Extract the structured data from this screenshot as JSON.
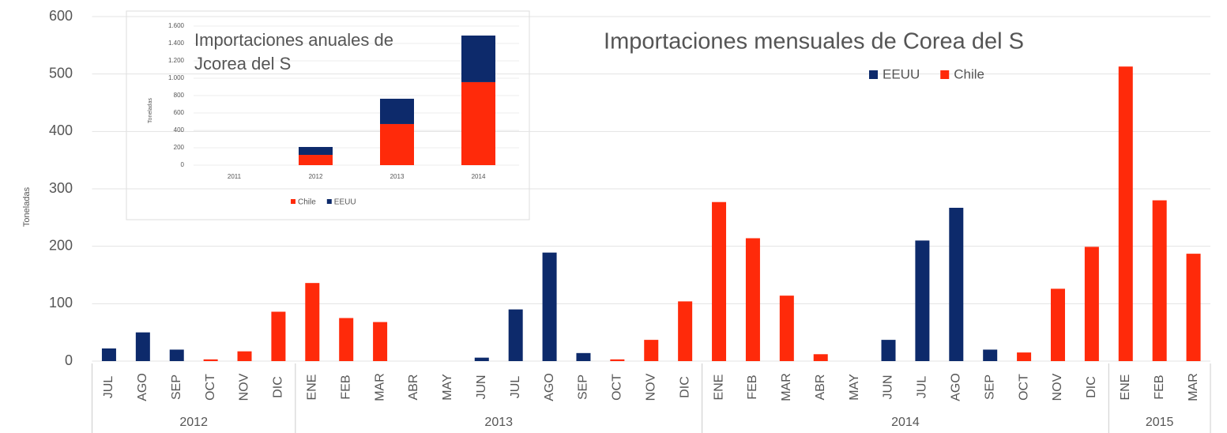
{
  "chart_data": [
    {
      "type": "bar",
      "title": "Importaciones mensuales de Corea del S",
      "y_label": "Toneladas",
      "categories": [
        "JUL",
        "AGO",
        "SEP",
        "OCT",
        "NOV",
        "DIC",
        "ENE",
        "FEB",
        "MAR",
        "ABR",
        "MAY",
        "JUN",
        "JUL",
        "AGO",
        "SEP",
        "OCT",
        "NOV",
        "DIC",
        "ENE",
        "FEB",
        "MAR",
        "ABR",
        "MAY",
        "JUN",
        "JUL",
        "AGO",
        "SEP",
        "OCT",
        "NOV",
        "DIC",
        "ENE",
        "FEB",
        "MAR"
      ],
      "category_groups": [
        {
          "label": "2012",
          "count": 6
        },
        {
          "label": "2013",
          "count": 12
        },
        {
          "label": "2014",
          "count": 12
        },
        {
          "label": "2015",
          "count": 3
        }
      ],
      "series": [
        {
          "name": "EEUU",
          "color": "#0d2a6b",
          "values": [
            22,
            50,
            20,
            null,
            null,
            null,
            null,
            null,
            null,
            null,
            null,
            6,
            90,
            189,
            14,
            null,
            null,
            null,
            null,
            null,
            null,
            null,
            null,
            37,
            210,
            267,
            20,
            null,
            null,
            null,
            null,
            null,
            null
          ]
        },
        {
          "name": "Chile",
          "color": "#ff2a0a",
          "values": [
            null,
            null,
            null,
            3,
            17,
            86,
            136,
            75,
            68,
            null,
            null,
            null,
            null,
            null,
            null,
            3,
            37,
            104,
            277,
            214,
            114,
            12,
            null,
            null,
            null,
            null,
            null,
            15,
            126,
            199,
            513,
            280,
            187
          ]
        }
      ],
      "ylim": [
        0,
        600
      ],
      "yticks": [
        0,
        100,
        200,
        300,
        400,
        500,
        600
      ],
      "grid": true
    },
    {
      "type": "stacked_bar",
      "title": "Importaciones anuales de Jcorea del S",
      "y_label": "Toneladas",
      "categories": [
        "2011",
        "2012",
        "2013",
        "2014"
      ],
      "series": [
        {
          "name": "Chile",
          "color": "#ff2a0a",
          "values": [
            0,
            118,
            473,
            955
          ]
        },
        {
          "name": "EEUU",
          "color": "#0d2a6b",
          "values": [
            0,
            91,
            291,
            536
          ]
        }
      ],
      "ylim": [
        0,
        1600
      ],
      "yticks": [
        0,
        200,
        400,
        600,
        800,
        {
          "value": 1000,
          "label": "1.000"
        },
        {
          "value": 1200,
          "label": "1.200"
        },
        {
          "value": 1400,
          "label": "1.400"
        },
        {
          "value": 1600,
          "label": "1.600"
        }
      ],
      "grid": true
    }
  ]
}
